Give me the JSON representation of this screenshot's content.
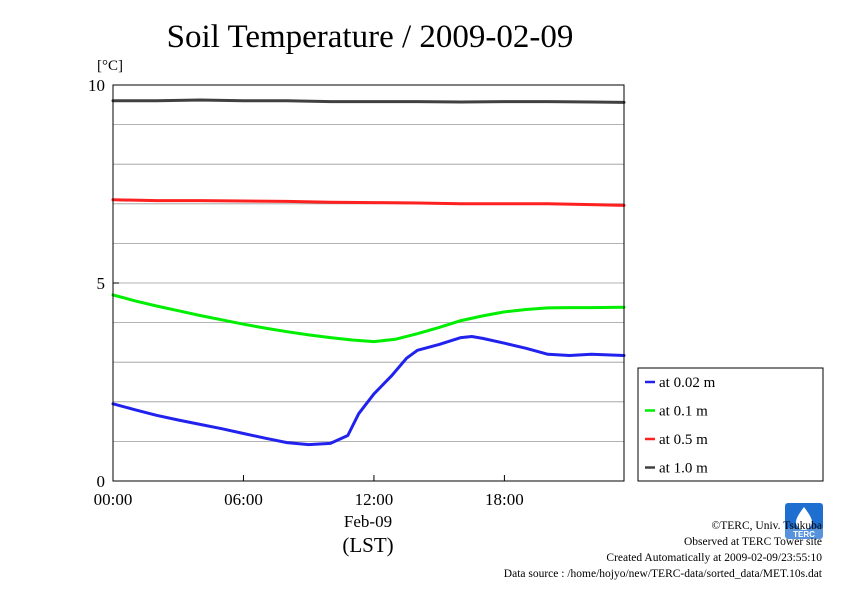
{
  "chart_data": {
    "type": "line",
    "title": "Soil Temperature / 2009-02-09",
    "unit": "[°C]",
    "xlabel": "(LST)",
    "date_label": "Feb-09",
    "x_range_hours": [
      0,
      23.5
    ],
    "ylim": [
      0,
      10
    ],
    "y_ticks": [
      0,
      5,
      10
    ],
    "y_gridlines": [
      1,
      2,
      3,
      4,
      5,
      6,
      7,
      8,
      9
    ],
    "x_ticks": [
      {
        "hour": 0,
        "label": "00:00"
      },
      {
        "hour": 6,
        "label": "06:00"
      },
      {
        "hour": 12,
        "label": "12:00"
      },
      {
        "hour": 18,
        "label": "18:00"
      }
    ],
    "grid": true,
    "legend_position": "right",
    "series": [
      {
        "name": "at 1.0 m",
        "color": "#404040",
        "points": [
          [
            0,
            9.6
          ],
          [
            2,
            9.6
          ],
          [
            4,
            9.62
          ],
          [
            6,
            9.6
          ],
          [
            8,
            9.6
          ],
          [
            10,
            9.58
          ],
          [
            12,
            9.58
          ],
          [
            14,
            9.58
          ],
          [
            16,
            9.57
          ],
          [
            18,
            9.58
          ],
          [
            20,
            9.58
          ],
          [
            22,
            9.57
          ],
          [
            23.5,
            9.56
          ]
        ]
      },
      {
        "name": "at 0.5 m",
        "color": "#ff2020",
        "points": [
          [
            0,
            7.1
          ],
          [
            2,
            7.08
          ],
          [
            4,
            7.08
          ],
          [
            6,
            7.07
          ],
          [
            8,
            7.06
          ],
          [
            10,
            7.04
          ],
          [
            12,
            7.03
          ],
          [
            14,
            7.02
          ],
          [
            16,
            7.0
          ],
          [
            18,
            7.0
          ],
          [
            20,
            7.0
          ],
          [
            22,
            6.98
          ],
          [
            23.5,
            6.96
          ]
        ]
      },
      {
        "name": "at 0.1 m",
        "color": "#00ee00",
        "points": [
          [
            0,
            4.7
          ],
          [
            1,
            4.55
          ],
          [
            2,
            4.42
          ],
          [
            3,
            4.3
          ],
          [
            4,
            4.18
          ],
          [
            5,
            4.07
          ],
          [
            6,
            3.96
          ],
          [
            7,
            3.86
          ],
          [
            8,
            3.77
          ],
          [
            9,
            3.69
          ],
          [
            10,
            3.62
          ],
          [
            11,
            3.56
          ],
          [
            12,
            3.52
          ],
          [
            13,
            3.58
          ],
          [
            14,
            3.72
          ],
          [
            15,
            3.88
          ],
          [
            16,
            4.05
          ],
          [
            17,
            4.17
          ],
          [
            18,
            4.27
          ],
          [
            19,
            4.33
          ],
          [
            20,
            4.37
          ],
          [
            21,
            4.38
          ],
          [
            22,
            4.38
          ],
          [
            23.5,
            4.39
          ]
        ]
      },
      {
        "name": "at 0.02 m",
        "color": "#2222ee",
        "points": [
          [
            0,
            1.95
          ],
          [
            1,
            1.8
          ],
          [
            2,
            1.66
          ],
          [
            3,
            1.54
          ],
          [
            4,
            1.43
          ],
          [
            5,
            1.32
          ],
          [
            6,
            1.2
          ],
          [
            7,
            1.08
          ],
          [
            8,
            0.97
          ],
          [
            9,
            0.92
          ],
          [
            10,
            0.95
          ],
          [
            10.8,
            1.15
          ],
          [
            11.3,
            1.7
          ],
          [
            12,
            2.2
          ],
          [
            12.8,
            2.65
          ],
          [
            13.5,
            3.1
          ],
          [
            14,
            3.3
          ],
          [
            15,
            3.45
          ],
          [
            16,
            3.62
          ],
          [
            16.5,
            3.65
          ],
          [
            17,
            3.6
          ],
          [
            18,
            3.48
          ],
          [
            19,
            3.35
          ],
          [
            20,
            3.2
          ],
          [
            21,
            3.17
          ],
          [
            22,
            3.2
          ],
          [
            23.5,
            3.17
          ]
        ]
      }
    ]
  },
  "credits": {
    "copyright": "©TERC, Univ. Tsukuba",
    "observed": "Observed at TERC Tower site",
    "created": "Created Automatically at 2009-02-09/23:55:10",
    "source": "Data source : /home/hojyo/new/TERC-data/sorted_data/MET.10s.dat"
  },
  "logo": {
    "text": "TERC",
    "color": "#1e6fd0"
  }
}
